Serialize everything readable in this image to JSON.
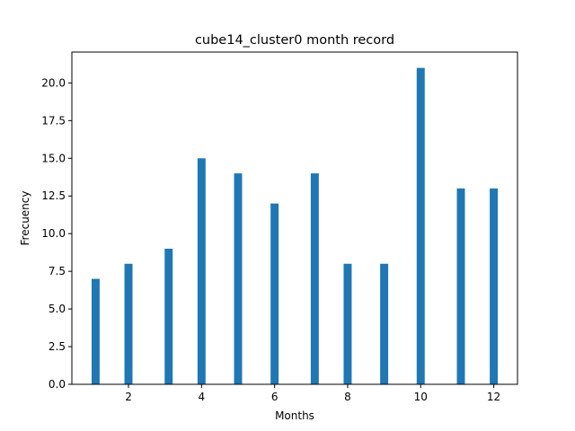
{
  "chart_data": {
    "type": "bar",
    "title": "cube14_cluster0 month record",
    "xlabel": "Months",
    "ylabel": "Frecuency",
    "x": [
      1.1,
      2,
      3.1,
      4,
      5,
      6,
      7.1,
      8,
      9,
      10,
      11.1,
      12
    ],
    "values": [
      7,
      8,
      9,
      15,
      14,
      12,
      14,
      8,
      8,
      21,
      13,
      13
    ],
    "bar_width": 0.22,
    "xlim": [
      0.45,
      12.65
    ],
    "ylim": [
      0,
      22.05
    ],
    "xticks": [
      2,
      4,
      6,
      8,
      10,
      12
    ],
    "yticks": [
      0,
      2.5,
      5,
      7.5,
      10,
      12.5,
      15,
      17.5,
      20
    ],
    "xtick_labels": [
      "2",
      "4",
      "6",
      "8",
      "10",
      "12"
    ],
    "ytick_labels": [
      "0.0",
      "2.5",
      "5.0",
      "7.5",
      "10.0",
      "12.5",
      "15.0",
      "17.5",
      "20.0"
    ],
    "bar_color": "#1f77b4",
    "grid": false,
    "legend": "none"
  }
}
